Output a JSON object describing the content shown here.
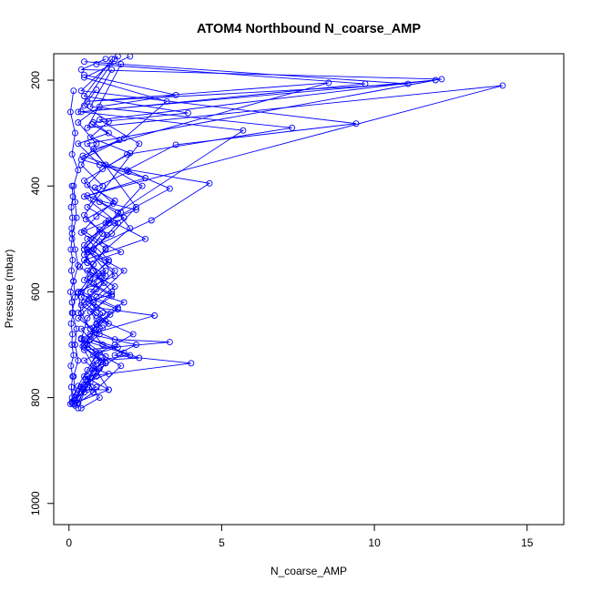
{
  "chart_data": {
    "type": "line",
    "title": "ATOM4 Northbound N_coarse_AMP",
    "xlabel": "N_coarse_AMP",
    "ylabel": "Pressure (mbar)",
    "xlim": [
      -0.5,
      16.2
    ],
    "ylim": [
      1040,
      150
    ],
    "y_reversed": true,
    "x_ticks": [
      0,
      5,
      10,
      15
    ],
    "y_ticks": [
      200,
      400,
      600,
      800,
      1000
    ],
    "grid": false,
    "color": "#0000ff",
    "markers": "open-circle",
    "profiles": [
      {
        "x": [
          0.1,
          0.2,
          0.15,
          0.3,
          0.2,
          0.25,
          0.1,
          0.2,
          0.15,
          0.3,
          0.2,
          0.1,
          0.25,
          0.2,
          0.15,
          0.3,
          0.1,
          0.2,
          0.05,
          0.15
        ],
        "y": [
          810,
          790,
          760,
          730,
          700,
          670,
          640,
          610,
          580,
          550,
          520,
          490,
          460,
          430,
          400,
          370,
          340,
          300,
          260,
          220
        ]
      },
      {
        "x": [
          0.3,
          0.5,
          0.4,
          0.9,
          1.2,
          0.8,
          1.5,
          2.1,
          0.9,
          1.8,
          0.7,
          1.2,
          0.5,
          2.5,
          1.5,
          0.6,
          1.1,
          0.4,
          0.9,
          0.3,
          1.0,
          3.5,
          0.5
        ],
        "y": [
          820,
          790,
          780,
          760,
          735,
          720,
          700,
          680,
          650,
          620,
          600,
          570,
          540,
          500,
          470,
          440,
          400,
          360,
          320,
          280,
          250,
          228,
          190
        ]
      },
      {
        "x": [
          0.2,
          0.6,
          1.3,
          0.5,
          0.9,
          2.3,
          1.1,
          0.7,
          0.4,
          0.3,
          1.5,
          0.8,
          1.6,
          0.5,
          14.2,
          0.6,
          1.7
        ],
        "y": [
          800,
          785,
          785,
          760,
          730,
          725,
          700,
          670,
          640,
          600,
          570,
          520,
          470,
          420,
          210,
          290,
          170
        ]
      },
      {
        "x": [
          0.3,
          0.8,
          0.6,
          4.0,
          1.5,
          2.2,
          0.7,
          2.8,
          0.9,
          0.4,
          1.2,
          0.6,
          2.7,
          4.6,
          1.0,
          0.3,
          1.3,
          0.8,
          3.9,
          0.5,
          1.4
        ],
        "y": [
          810,
          790,
          760,
          735,
          720,
          700,
          680,
          645,
          630,
          600,
          560,
          520,
          465,
          395,
          360,
          320,
          300,
          280,
          262,
          230,
          160
        ]
      },
      {
        "x": [
          0.2,
          1.3,
          0.8,
          0.5,
          3.3,
          1.5,
          0.7,
          0.3,
          0.9,
          1.8,
          0.5,
          1.2,
          3.3,
          1.9,
          3.5,
          9.4,
          0.4,
          1.6
        ],
        "y": [
          810,
          785,
          740,
          710,
          695,
          690,
          670,
          640,
          610,
          560,
          520,
          470,
          405,
          370,
          322,
          282,
          220,
          155
        ]
      },
      {
        "x": [
          0.4,
          1.0,
          0.6,
          0.9,
          2.0,
          0.4,
          0.6,
          1.4,
          0.8,
          0.5,
          1.3,
          2.4,
          1.2,
          0.6,
          12.0,
          0.3,
          1.5
        ],
        "y": [
          820,
          800,
          770,
          730,
          720,
          690,
          650,
          600,
          560,
          520,
          470,
          400,
          360,
          320,
          200,
          260,
          160
        ]
      },
      {
        "x": [
          0.3,
          0.8,
          1.7,
          0.5,
          0.9,
          1.1,
          0.4,
          0.7,
          1.3,
          0.6,
          1.8,
          1.0,
          0.5,
          1.9,
          7.3,
          0.7,
          1.4
        ],
        "y": [
          810,
          790,
          740,
          700,
          670,
          640,
          610,
          575,
          540,
          500,
          460,
          430,
          390,
          340,
          290,
          250,
          180
        ]
      },
      {
        "x": [
          0.2,
          0.6,
          1.1,
          0.5,
          1.0,
          0.3,
          0.8,
          1.5,
          0.6,
          1.2,
          2.0,
          1.6,
          5.7,
          0.4,
          9.7,
          0.9
        ],
        "y": [
          815,
          780,
          730,
          705,
          680,
          650,
          620,
          590,
          560,
          520,
          480,
          450,
          295,
          260,
          207,
          170
        ]
      },
      {
        "x": [
          0.3,
          0.7,
          1.2,
          0.6,
          0.9,
          1.6,
          0.4,
          1.0,
          0.5,
          1.4,
          2.2,
          0.8,
          8.5,
          0.6,
          11.1,
          0.5
        ],
        "y": [
          800,
          770,
          735,
          700,
          660,
          630,
          600,
          570,
          530,
          490,
          440,
          330,
          205,
          240,
          207,
          165
        ]
      },
      {
        "x": [
          0.2,
          0.5,
          1.0,
          1.8,
          0.7,
          1.3,
          0.4,
          0.9,
          1.5,
          0.6,
          1.1,
          0.5,
          2.3,
          1.0,
          12.2,
          0.4,
          1.2
        ],
        "y": [
          805,
          775,
          745,
          715,
          690,
          660,
          625,
          595,
          560,
          525,
          490,
          455,
          320,
          275,
          198,
          180,
          160
        ]
      },
      {
        "x": [
          0.15,
          0.4,
          0.8,
          1.2,
          0.5,
          0.9,
          1.6,
          0.3,
          0.7,
          1.3,
          0.5,
          1.0,
          1.7,
          0.6,
          2.5,
          0.4,
          1.8,
          3.2,
          0.5,
          2.0
        ],
        "y": [
          812,
          783,
          752,
          722,
          692,
          662,
          633,
          603,
          573,
          543,
          512,
          482,
          450,
          418,
          385,
          350,
          310,
          240,
          195,
          155
        ]
      },
      {
        "x": [
          0.1,
          0.3,
          0.6,
          0.9,
          0.4,
          1.1,
          0.7,
          1.4,
          0.5,
          0.8,
          1.2,
          0.4,
          0.9,
          1.5,
          0.6,
          1.1,
          2.0,
          0.7,
          1.3,
          0.5,
          0.9
        ],
        "y": [
          808,
          778,
          748,
          718,
          688,
          668,
          638,
          608,
          578,
          548,
          518,
          488,
          458,
          428,
          398,
          368,
          338,
          308,
          278,
          248,
          218
        ]
      },
      {
        "x": [
          0.25,
          0.55,
          1.05,
          0.45,
          0.85,
          1.35,
          0.65,
          1.15,
          0.35,
          0.75,
          1.25,
          0.55,
          1.45,
          0.85,
          1.95,
          0.45,
          1.65,
          0.75
        ],
        "y": [
          795,
          765,
          733,
          703,
          673,
          643,
          613,
          583,
          553,
          523,
          493,
          463,
          433,
          403,
          373,
          343,
          313,
          283
        ]
      },
      {
        "x": [
          0.05,
          0.1,
          0.08,
          0.12,
          0.06,
          0.15,
          0.09,
          0.11,
          0.07,
          0.13,
          0.1,
          0.05,
          0.14,
          0.08,
          0.12,
          0.06,
          0.1,
          0.09,
          0.11,
          0.07,
          0.13,
          0.1
        ],
        "y": [
          812,
          800,
          780,
          760,
          740,
          720,
          700,
          680,
          660,
          640,
          620,
          600,
          580,
          560,
          540,
          520,
          500,
          480,
          460,
          440,
          420,
          400
        ]
      },
      {
        "x": [
          0.4,
          0.9,
          0.6,
          1.3,
          0.8,
          0.5,
          1.0,
          1.6,
          0.7,
          0.4,
          1.2,
          0.9,
          0.5,
          1.4,
          0.8,
          1.1,
          0.6,
          1.7,
          1.0,
          0.5,
          1.3,
          2.2,
          0.8
        ],
        "y": [
          790,
          780,
          770,
          755,
          745,
          730,
          715,
          705,
          690,
          670,
          655,
          640,
          620,
          605,
          585,
          565,
          545,
          525,
          505,
          485,
          465,
          445,
          425
        ]
      }
    ]
  }
}
